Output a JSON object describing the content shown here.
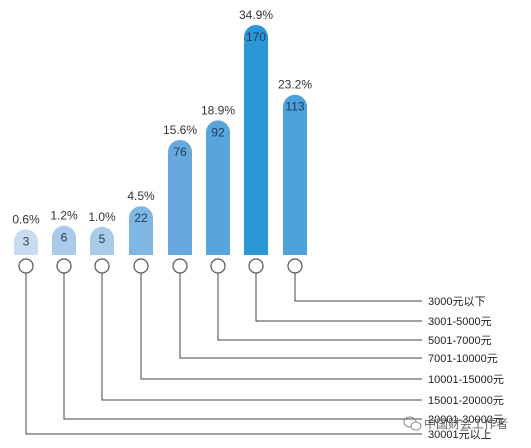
{
  "chart_data": {
    "type": "bar",
    "categories": [
      "30001元以上",
      "20001-30000元",
      "15001-20000元",
      "10001-15000元",
      "7001-10000元",
      "5001-7000元",
      "3001-5000元",
      "3000元以下"
    ],
    "values": [
      3,
      6,
      5,
      22,
      76,
      92,
      170,
      113
    ],
    "value_labels": [
      "3",
      "6",
      "5",
      "22",
      "76",
      "92",
      "170",
      "113"
    ],
    "percent_labels": [
      "0.6%",
      "1.2%",
      "1.0%",
      "4.5%",
      "15.6%",
      "18.9%",
      "34.9%",
      "23.2%"
    ],
    "title": "",
    "xlabel": "",
    "ylabel": "",
    "ylim": [
      0,
      170
    ],
    "grid": false,
    "legend": "none",
    "colors": [
      "#c9dcef",
      "#a9cbe9",
      "#a9cbe9",
      "#7fb6e2",
      "#67a9de",
      "#5aa4dc",
      "#2b96d6",
      "#4da2dc"
    ]
  },
  "watermark": {
    "text": "中国财会工作者",
    "icon": "wechat-icon"
  }
}
